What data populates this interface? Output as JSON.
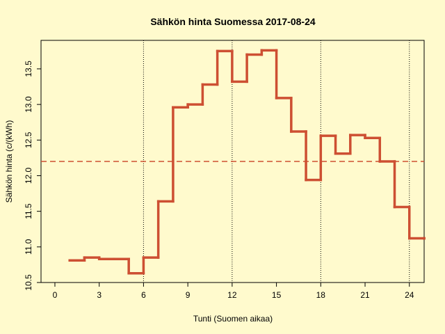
{
  "chart_data": {
    "type": "step",
    "title": "Sähkön hinta Suomessa 2017-08-24",
    "x_label": "Tunti (Suomen aikaa)",
    "y_label": "Sähkön hinta (c/(kWh)",
    "x": [
      1,
      2,
      3,
      4,
      5,
      6,
      7,
      8,
      9,
      10,
      11,
      12,
      13,
      14,
      15,
      16,
      17,
      18,
      19,
      20,
      21,
      22,
      23,
      24,
      25
    ],
    "series": [
      {
        "color": "#cd4f32",
        "values": [
          10.81,
          10.85,
          10.83,
          10.83,
          10.63,
          10.85,
          11.64,
          12.96,
          13.0,
          13.28,
          13.75,
          13.32,
          13.7,
          13.76,
          13.09,
          12.62,
          11.94,
          12.56,
          12.31,
          12.57,
          12.53,
          12.2,
          11.56,
          11.12,
          11.12
        ]
      }
    ],
    "mean_line": 12.2,
    "vlines": [
      6,
      12,
      18,
      24
    ],
    "xlim": [
      -0.94,
      25
    ],
    "ylim": [
      10.5,
      13.9
    ],
    "xticks": [
      0,
      3,
      6,
      9,
      12,
      15,
      18,
      21,
      24
    ],
    "yticks": [
      10.5,
      {
        "value": 11,
        "label": "11.0"
      },
      11.5,
      {
        "value": 12,
        "label": "12.0"
      },
      12.5,
      {
        "value": 13,
        "label": "13.0"
      },
      13.5
    ]
  }
}
